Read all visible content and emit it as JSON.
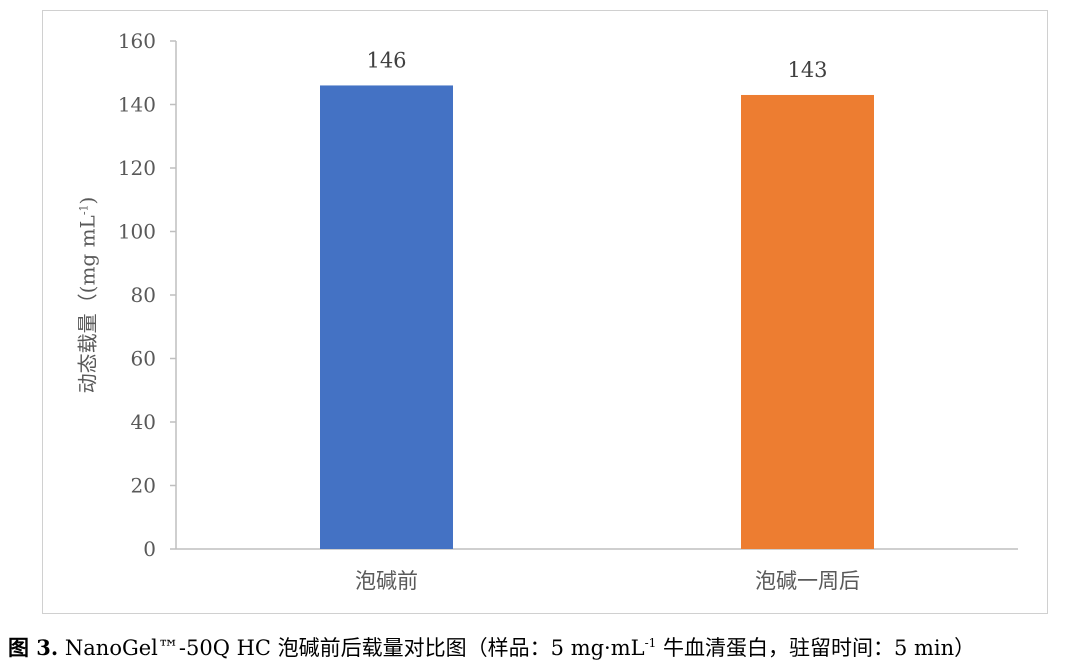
{
  "chart_data": {
    "type": "bar",
    "categories": [
      "泡碱前",
      "泡碱一周后"
    ],
    "values": [
      146,
      143
    ],
    "colors": [
      "#4472c4",
      "#ed7d31"
    ],
    "data_labels": [
      "146",
      "143"
    ],
    "ylim": [
      0,
      160
    ],
    "yticks": [
      0,
      20,
      40,
      60,
      80,
      100,
      120,
      140,
      160
    ],
    "ylabel": {
      "text": "动态载量（(mg mL",
      "sup": "-1",
      "tail": ")"
    },
    "grid": false,
    "legend": "none"
  },
  "caption": {
    "label": "图 3.",
    "text": " NanoGel™-50Q HC 泡碱前后载量对比图（样品：5 mg·mL",
    "sup": "-1",
    "tail": " 牛血清蛋白，驻留时间：5 min）"
  }
}
